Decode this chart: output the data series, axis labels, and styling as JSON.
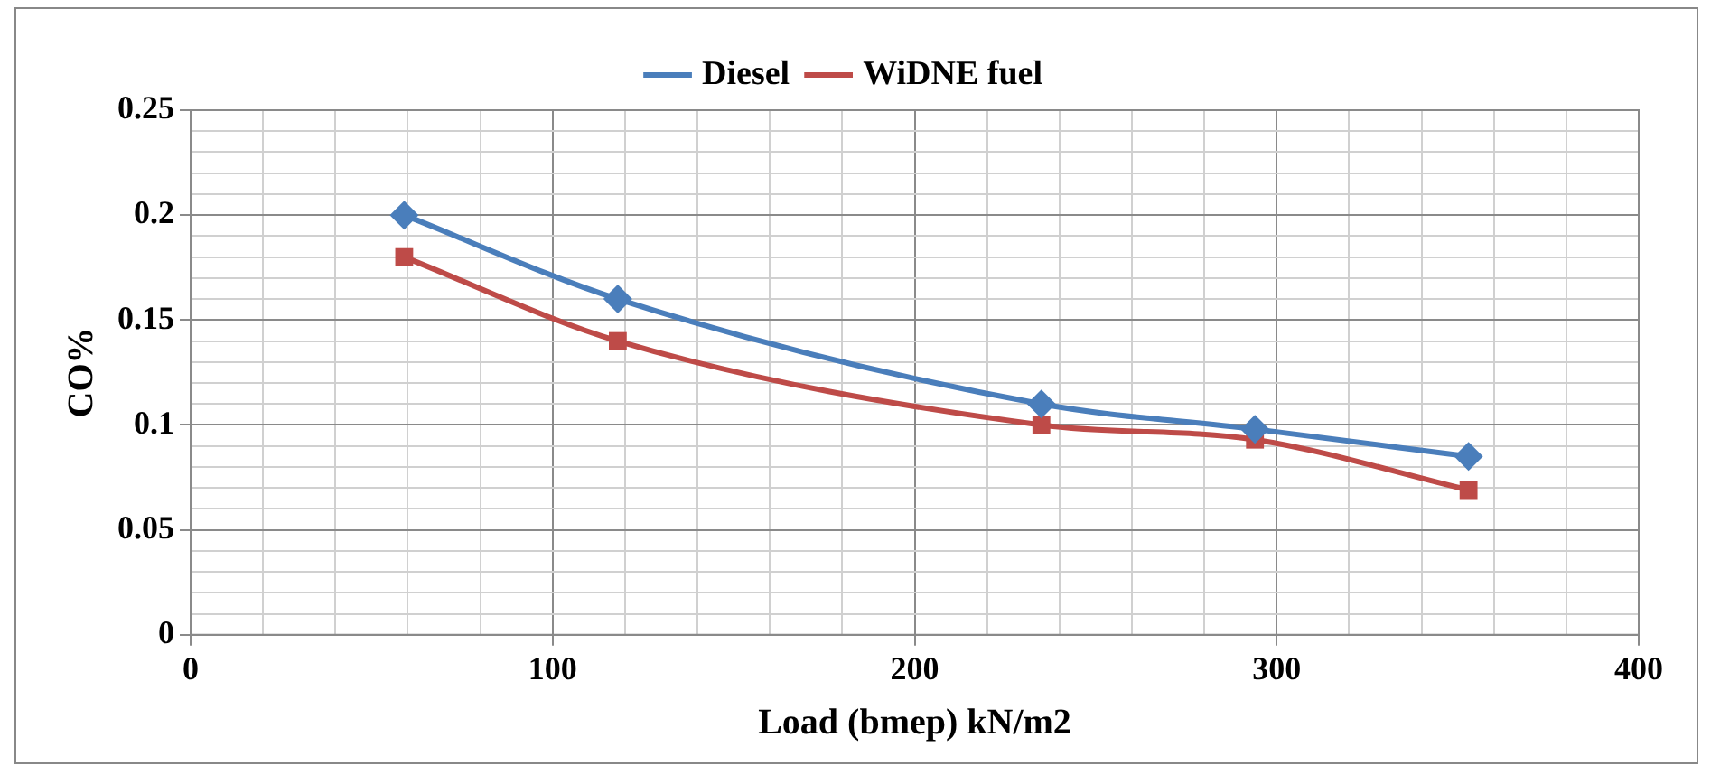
{
  "chart_data": {
    "type": "line",
    "xlabel": "Load (bmep) kN/m2",
    "ylabel": "CO%",
    "x": [
      59,
      118,
      235,
      294,
      353
    ],
    "series": [
      {
        "name": "Diesel",
        "color": "#4a7ebb",
        "marker": "diamond",
        "values": [
          0.2,
          0.16,
          0.11,
          0.098,
          0.085
        ]
      },
      {
        "name": "WiDNE fuel",
        "color": "#be4b48",
        "marker": "square",
        "values": [
          0.18,
          0.14,
          0.1,
          0.093,
          0.069
        ]
      }
    ],
    "xlim": [
      0,
      400
    ],
    "xticks": [
      0,
      {
        "value": 20,
        "label": null
      },
      {
        "value": 40,
        "label": null
      },
      {
        "value": 60,
        "label": null
      },
      {
        "value": 80,
        "label": null
      },
      100,
      {
        "value": 120,
        "label": null
      },
      {
        "value": 140,
        "label": null
      },
      {
        "value": 160,
        "label": null
      },
      {
        "value": 180,
        "label": null
      },
      200,
      {
        "value": 220,
        "label": null
      },
      {
        "value": 240,
        "label": null
      },
      {
        "value": 260,
        "label": null
      },
      {
        "value": 280,
        "label": null
      },
      300,
      {
        "value": 320,
        "label": null
      },
      {
        "value": 340,
        "label": null
      },
      {
        "value": 360,
        "label": null
      },
      {
        "value": 380,
        "label": null
      },
      400
    ],
    "ylim": [
      0,
      0.25
    ],
    "yticks": [
      0,
      {
        "value": 0.01,
        "label": null
      },
      {
        "value": 0.02,
        "label": null
      },
      {
        "value": 0.03,
        "label": null
      },
      {
        "value": 0.04,
        "label": null
      },
      0.05,
      {
        "value": 0.06,
        "label": null
      },
      {
        "value": 0.07,
        "label": null
      },
      {
        "value": 0.08,
        "label": null
      },
      {
        "value": 0.09,
        "label": null
      },
      0.1,
      {
        "value": 0.11,
        "label": null
      },
      {
        "value": 0.12,
        "label": null
      },
      {
        "value": 0.13,
        "label": null
      },
      {
        "value": 0.14,
        "label": null
      },
      0.15,
      {
        "value": 0.16,
        "label": null
      },
      {
        "value": 0.17,
        "label": null
      },
      {
        "value": 0.18,
        "label": null
      },
      {
        "value": 0.19,
        "label": null
      },
      0.2,
      {
        "value": 0.21,
        "label": null
      },
      {
        "value": 0.22,
        "label": null
      },
      {
        "value": 0.23,
        "label": null
      },
      {
        "value": 0.24,
        "label": null
      },
      0.25
    ],
    "grid": true,
    "legend": "top"
  }
}
